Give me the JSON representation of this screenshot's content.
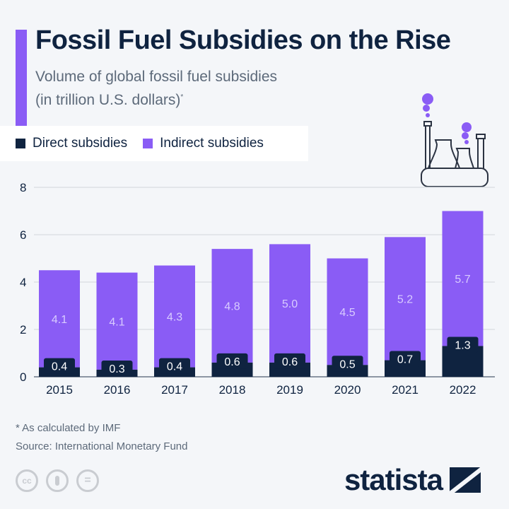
{
  "title": "Fossil Fuel Subsidies on the Rise",
  "subtitle_line1": "Volume of global fossil fuel subsidies",
  "subtitle_line2": "(in trillion U.S. dollars)",
  "subtitle_mark": "*",
  "footnote": "* As calculated by IMF",
  "source": "Source: International Monetary Fund",
  "brand": "statista",
  "license_icons": [
    "cc-icon",
    "attribution-icon",
    "no-derivatives-icon"
  ],
  "license_text": {
    "cc": "cc",
    "nd": "="
  },
  "icon": "power-plant-icon",
  "colors": {
    "direct": "#0f2340",
    "indirect": "#8a5cf5",
    "indirect_label": "#d9ccff",
    "background": "#f4f6f9"
  },
  "chart_data": {
    "type": "bar",
    "stacked": true,
    "categories": [
      "2015",
      "2016",
      "2017",
      "2018",
      "2019",
      "2020",
      "2021",
      "2022"
    ],
    "series": [
      {
        "name": "Direct subsidies",
        "values": [
          0.4,
          0.3,
          0.4,
          0.6,
          0.6,
          0.5,
          0.7,
          1.3
        ],
        "labels": [
          "0.4",
          "0.3",
          "0.4",
          "0.6",
          "0.6",
          "0.5",
          "0.7",
          "1.3"
        ]
      },
      {
        "name": "Indirect subsidies",
        "values": [
          4.1,
          4.1,
          4.3,
          4.8,
          5.0,
          4.5,
          5.2,
          5.7
        ],
        "labels": [
          "4.1",
          "4.1",
          "4.3",
          "4.8",
          "5.0",
          "4.5",
          "5.2",
          "5.7"
        ]
      }
    ],
    "ylim": [
      0,
      8
    ],
    "yticks": [
      "0",
      "2",
      "4",
      "6",
      "8"
    ],
    "grid": true,
    "legend": "top-left"
  }
}
